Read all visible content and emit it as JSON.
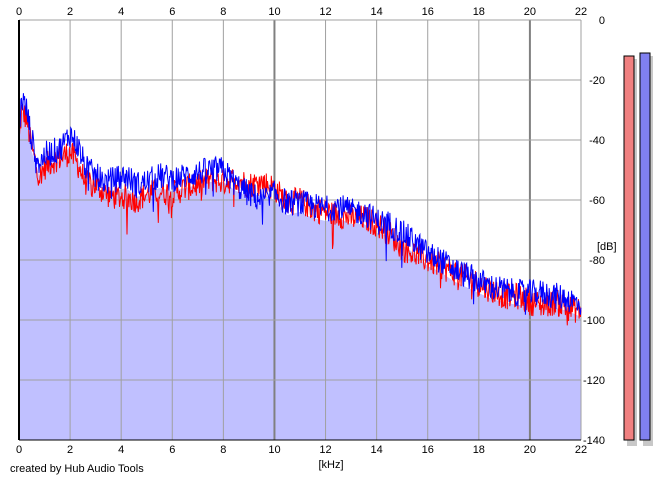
{
  "footer": {
    "credit": "created by Hub Audio Tools"
  },
  "chart_data": {
    "type": "area",
    "xlabel": "[kHz]",
    "ylabel": "[dB]",
    "xlim": [
      0,
      22
    ],
    "ylim": [
      -140,
      0
    ],
    "x_ticks": [
      0,
      2,
      4,
      6,
      8,
      10,
      12,
      14,
      16,
      18,
      20,
      22
    ],
    "y_ticks": [
      0,
      -20,
      -40,
      -60,
      -80,
      -100,
      -120,
      -140
    ],
    "grid": true,
    "area_fill_color": "#c0c0ff",
    "series": [
      {
        "color": "#ff0000",
        "x": [
          0,
          0.1,
          0.3,
          0.5,
          0.8,
          1.0,
          1.3,
          1.6,
          2.0,
          2.3,
          2.6,
          3.0,
          3.4,
          3.8,
          4.2,
          4.6,
          5.0,
          5.5,
          6.0,
          6.5,
          7.0,
          7.5,
          8.0,
          8.5,
          9.0,
          9.5,
          10.0,
          10.5,
          11.0,
          11.5,
          12.0,
          12.5,
          13.0,
          13.5,
          14.0,
          14.5,
          15.0,
          15.5,
          16.0,
          16.5,
          17.0,
          17.5,
          18.0,
          18.5,
          19.0,
          19.5,
          20.0,
          20.5,
          21.0,
          21.5,
          22.0
        ],
        "values": [
          -42,
          -30,
          -33,
          -43,
          -52,
          -49,
          -47,
          -46,
          -44,
          -48,
          -54,
          -55,
          -58,
          -59,
          -59,
          -60,
          -58,
          -57,
          -58,
          -56,
          -55,
          -53,
          -54,
          -53,
          -55,
          -54,
          -56,
          -61,
          -60,
          -63,
          -64,
          -65,
          -66,
          -66,
          -68,
          -71,
          -76,
          -78,
          -80,
          -82,
          -84,
          -86,
          -88,
          -90,
          -92,
          -92,
          -94,
          -95,
          -94,
          -96,
          -97
        ]
      },
      {
        "color": "#0000ff",
        "x": [
          0,
          0.1,
          0.3,
          0.5,
          0.8,
          1.0,
          1.3,
          1.6,
          2.0,
          2.3,
          2.6,
          3.0,
          3.4,
          3.8,
          4.2,
          4.6,
          5.0,
          5.5,
          6.0,
          6.5,
          7.0,
          7.5,
          8.0,
          8.5,
          9.0,
          9.5,
          10.0,
          10.5,
          11.0,
          11.5,
          12.0,
          12.5,
          13.0,
          13.5,
          14.0,
          14.5,
          15.0,
          15.5,
          16.0,
          16.5,
          17.0,
          17.5,
          18.0,
          18.5,
          19.0,
          19.5,
          20.0,
          20.5,
          21.0,
          21.5,
          22.0
        ],
        "values": [
          -38,
          -26,
          -30,
          -40,
          -48,
          -45,
          -44,
          -43,
          -38,
          -42,
          -49,
          -52,
          -54,
          -53,
          -52,
          -55,
          -54,
          -52,
          -53,
          -52,
          -51,
          -50,
          -50,
          -55,
          -58,
          -60,
          -58,
          -61,
          -61,
          -62,
          -63,
          -62,
          -64,
          -64,
          -67,
          -68,
          -71,
          -74,
          -78,
          -80,
          -83,
          -85,
          -87,
          -89,
          -90,
          -91,
          -91,
          -91,
          -92,
          -93,
          -95
        ]
      }
    ],
    "meters": [
      {
        "channel": "left",
        "color": "#f08080",
        "value_db": -12
      },
      {
        "channel": "right",
        "color": "#8080f0",
        "value_db": -11
      }
    ]
  }
}
